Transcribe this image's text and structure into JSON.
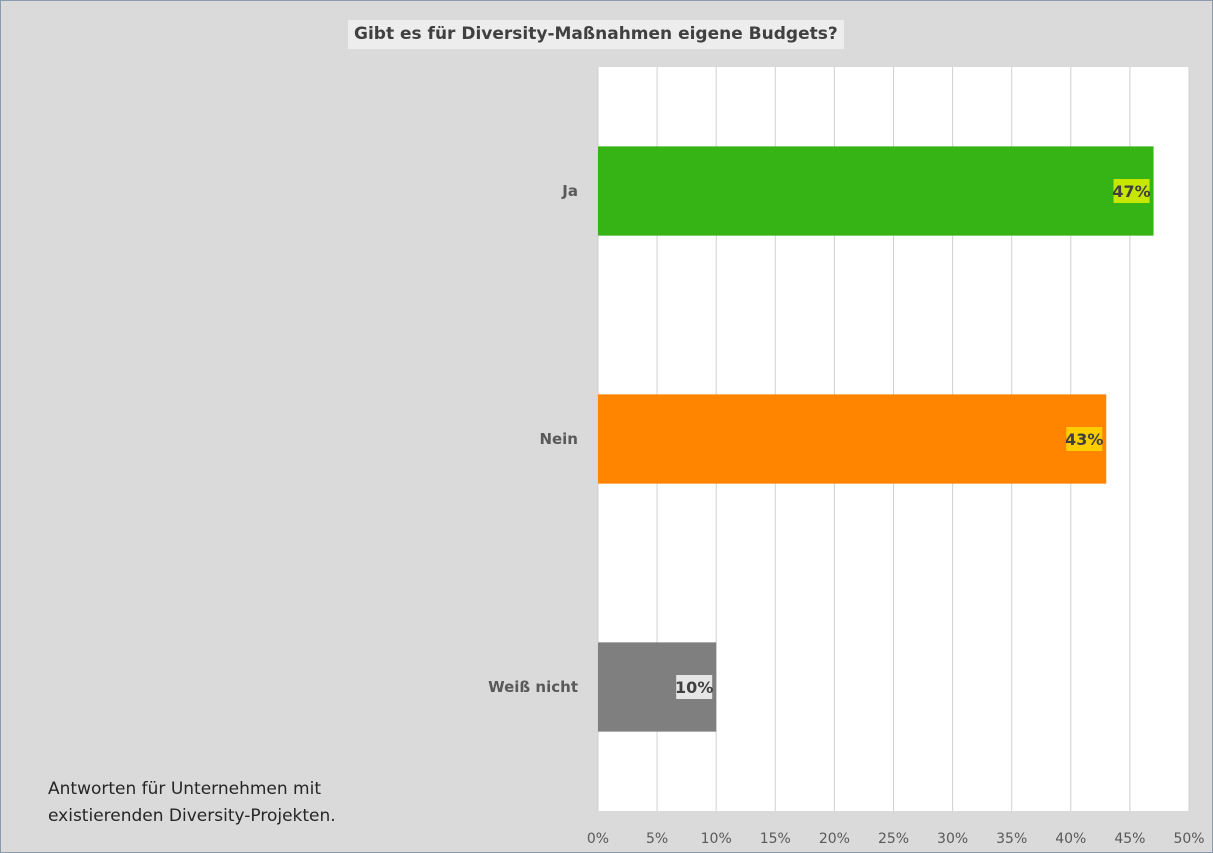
{
  "chart_data": {
    "type": "bar",
    "orientation": "horizontal",
    "title": "Gibt es für Diversity-Maßnahmen eigene Budgets?",
    "categories": [
      "Ja",
      "Nein",
      "Weiß nicht"
    ],
    "values": [
      47,
      43,
      10
    ],
    "data_labels": [
      "47%",
      "43%",
      "10%"
    ],
    "bar_colors": [
      "#36b416",
      "#ff8400",
      "#7f7f7f"
    ],
    "label_backgrounds": [
      "#c6e800",
      "#ffcc00",
      "#e6e6e6"
    ],
    "xlim": [
      0,
      50
    ],
    "xticks": [
      "0%",
      "5%",
      "10%",
      "15%",
      "20%",
      "25%",
      "30%",
      "35%",
      "40%",
      "45%",
      "50%"
    ],
    "grid": true,
    "legend": "none",
    "xlabel": "",
    "ylabel": ""
  },
  "note": {
    "line1": "Antworten für Unternehmen mit",
    "line2": "existierenden Diversity-Projekten."
  }
}
